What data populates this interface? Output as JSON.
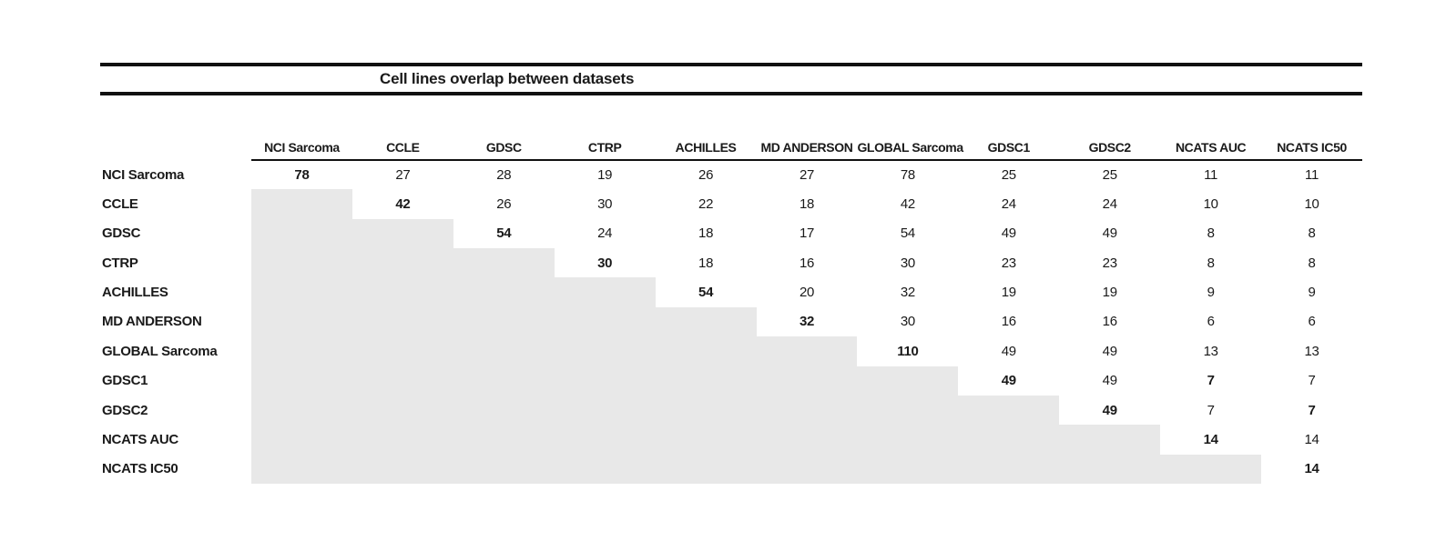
{
  "chart_data": {
    "type": "table",
    "title": "Cell lines overlap between datasets",
    "col_labels": [
      "NCI Sarcoma",
      "CCLE",
      "GDSC",
      "CTRP",
      "ACHILLES",
      "MD ANDERSON",
      "GLOBAL Sarcoma",
      "GDSC1",
      "GDSC2",
      "NCATS AUC",
      "NCATS IC50"
    ],
    "row_labels": [
      "NCI Sarcoma",
      "CCLE",
      "GDSC",
      "CTRP",
      "ACHILLES",
      "MD ANDERSON",
      "GLOBAL Sarcoma",
      "GDSC1",
      "GDSC2",
      "NCATS AUC",
      "NCATS IC50"
    ],
    "matrix": [
      [
        78,
        27,
        28,
        19,
        26,
        27,
        78,
        25,
        25,
        11,
        11
      ],
      [
        null,
        42,
        26,
        30,
        22,
        18,
        42,
        24,
        24,
        10,
        10
      ],
      [
        null,
        null,
        54,
        24,
        18,
        17,
        54,
        49,
        49,
        8,
        8
      ],
      [
        null,
        null,
        null,
        30,
        18,
        16,
        30,
        23,
        23,
        8,
        8
      ],
      [
        null,
        null,
        null,
        null,
        54,
        20,
        32,
        19,
        19,
        9,
        9
      ],
      [
        null,
        null,
        null,
        null,
        null,
        32,
        30,
        16,
        16,
        6,
        6
      ],
      [
        null,
        null,
        null,
        null,
        null,
        null,
        110,
        49,
        49,
        13,
        13
      ],
      [
        null,
        null,
        null,
        null,
        null,
        null,
        null,
        49,
        49,
        7,
        7
      ],
      [
        null,
        null,
        null,
        null,
        null,
        null,
        null,
        null,
        49,
        7,
        7
      ],
      [
        null,
        null,
        null,
        null,
        null,
        null,
        null,
        null,
        null,
        14,
        14
      ],
      [
        null,
        null,
        null,
        null,
        null,
        null,
        null,
        null,
        null,
        null,
        14
      ]
    ],
    "bold_cells": [
      [
        0,
        0
      ],
      [
        1,
        1
      ],
      [
        2,
        2
      ],
      [
        3,
        3
      ],
      [
        4,
        4
      ],
      [
        5,
        5
      ],
      [
        6,
        6
      ],
      [
        7,
        7
      ],
      [
        7,
        9
      ],
      [
        8,
        8
      ],
      [
        8,
        10
      ],
      [
        9,
        9
      ],
      [
        10,
        10
      ]
    ],
    "layout": {
      "shaded_region": "lower-triangle",
      "grid": false,
      "legend": false
    },
    "colors": {
      "shaded_cell": "#e8e8e8",
      "rule": "#111111",
      "text": "#1a1a1a"
    }
  }
}
